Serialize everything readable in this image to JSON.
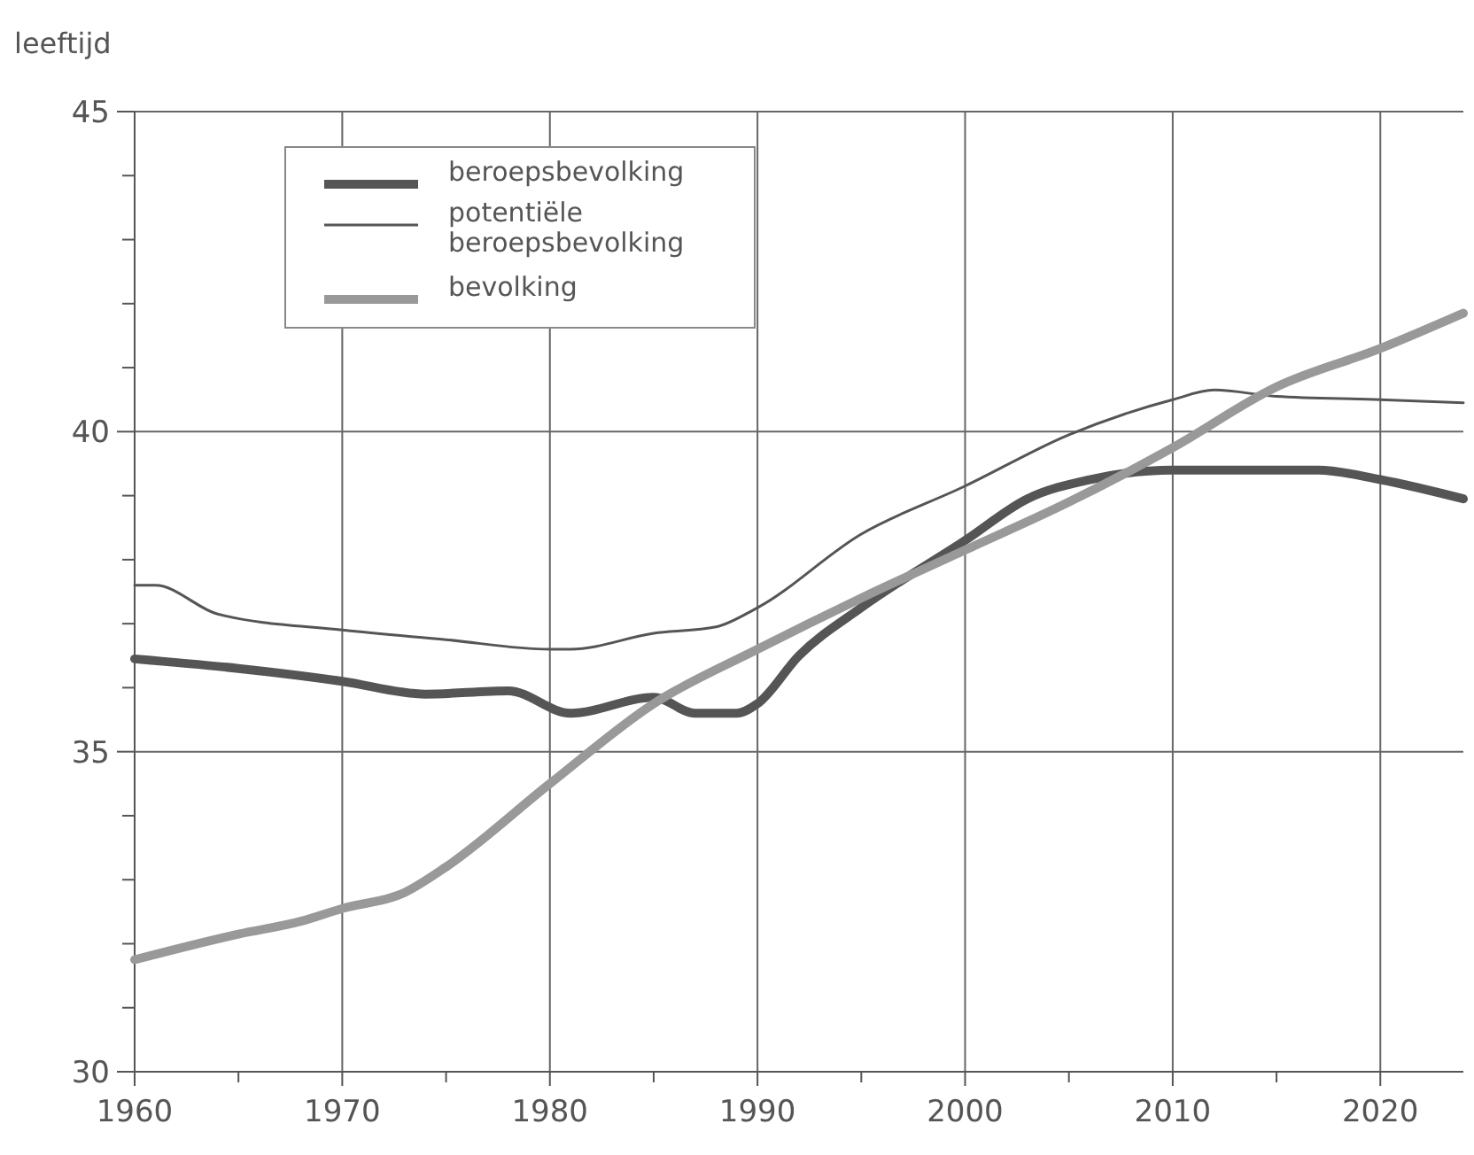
{
  "chart_data": {
    "type": "line",
    "ylabel": "leeftijd",
    "xlim": [
      1960,
      2024
    ],
    "xticks": [
      1960,
      {
        "value": 1965,
        "label": null
      },
      1970,
      {
        "value": 1975,
        "label": null
      },
      1980,
      {
        "value": 1985,
        "label": null
      },
      1990,
      {
        "value": 1995,
        "label": null
      },
      2000,
      {
        "value": 2005,
        "label": null
      },
      2010,
      {
        "value": 2015,
        "label": null
      },
      2020
    ],
    "ylim": [
      30,
      45
    ],
    "yticks": [
      30,
      {
        "value": 31,
        "label": null
      },
      {
        "value": 32,
        "label": null
      },
      {
        "value": 33,
        "label": null
      },
      {
        "value": 34,
        "label": null
      },
      35,
      {
        "value": 36,
        "label": null
      },
      {
        "value": 37,
        "label": null
      },
      {
        "value": 38,
        "label": null
      },
      {
        "value": 39,
        "label": null
      },
      40,
      {
        "value": 41,
        "label": null
      },
      {
        "value": 42,
        "label": null
      },
      {
        "value": 43,
        "label": null
      },
      {
        "value": 44,
        "label": null
      },
      45
    ],
    "grid": true,
    "legend": "top left",
    "series": [
      {
        "name": "beroepsbevolking",
        "color": "#555555",
        "x": [
          1960,
          1965,
          1970,
          1974,
          1978,
          1981,
          1985,
          1987,
          1989,
          1990,
          1992,
          1995,
          2000,
          2003,
          2006,
          2010,
          2015,
          2017,
          2020,
          2024
        ],
        "values": [
          36.45,
          36.3,
          36.1,
          35.9,
          35.95,
          35.6,
          35.85,
          35.6,
          35.6,
          35.75,
          36.5,
          37.25,
          38.3,
          38.95,
          39.25,
          39.4,
          39.4,
          39.4,
          39.25,
          38.95
        ]
      },
      {
        "name": "potentiële beroepsbevolking",
        "color": "#555555",
        "x": [
          1960,
          1961,
          1964,
          1970,
          1975,
          1980,
          1981,
          1985,
          1988,
          1990,
          1995,
          2000,
          2005,
          2010,
          2012,
          2015,
          2020,
          2024
        ],
        "values": [
          37.6,
          37.6,
          37.15,
          36.9,
          36.75,
          36.6,
          36.6,
          36.85,
          36.95,
          37.25,
          38.4,
          39.15,
          39.95,
          40.5,
          40.65,
          40.55,
          40.5,
          40.45
        ]
      },
      {
        "name": "bevolking",
        "color": "#999999",
        "x": [
          1960,
          1965,
          1968,
          1970,
          1973,
          1975,
          1980,
          1985,
          1990,
          1995,
          2000,
          2005,
          2010,
          2015,
          2020,
          2024
        ],
        "values": [
          31.75,
          32.15,
          32.35,
          32.55,
          32.8,
          33.2,
          34.5,
          35.75,
          36.6,
          37.4,
          38.15,
          38.9,
          39.75,
          40.7,
          41.3,
          41.85
        ]
      }
    ]
  }
}
